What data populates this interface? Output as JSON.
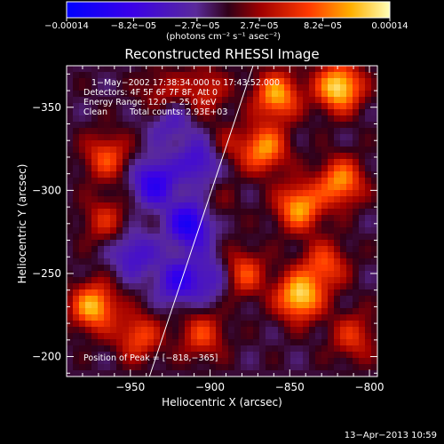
{
  "chart_data": {
    "type": "heatmap",
    "title": "Reconstructed RHESSI Image",
    "xlabel": "Heliocentric X (arcsec)",
    "ylabel": "Heliocentric Y (arcsec)",
    "xlim": [
      -990,
      -795
    ],
    "ylim": [
      -375,
      -188
    ],
    "x_ticks": [
      {
        "value": -950,
        "label": "−950"
      },
      {
        "value": -900,
        "label": "−900"
      },
      {
        "value": -850,
        "label": "−850"
      },
      {
        "value": -800,
        "label": "−800"
      }
    ],
    "y_ticks": [
      {
        "value": -200,
        "label": "−200"
      },
      {
        "value": -250,
        "label": "−250"
      },
      {
        "value": -300,
        "label": "−300"
      },
      {
        "value": -350,
        "label": "−350"
      }
    ],
    "colorbar": {
      "range": [
        -0.00014,
        0.00014
      ],
      "tick_values": [
        -0.00014,
        -8.2e-05,
        -2.7e-05,
        2.7e-05,
        8.2e-05,
        0.00014
      ],
      "tick_labels": [
        "−0.00014",
        "−8.2e−05",
        "−2.7e−05",
        "2.7e−05",
        "8.2e−05",
        "0.00014"
      ],
      "unit_label": "(photons cm⁻² s⁻¹ asec⁻²)"
    },
    "annotations": {
      "time": "1−May−2002 17:38:34.000 to 17:43:52.000",
      "detectors": "Detectors: 4F 5F 6F 7F 8F, Att 0",
      "energy": "Energy Range: 12.0 − 25.0 keV",
      "clean": "Clean",
      "counts": "Total counts: 2.93E+03",
      "peak": "Position of Peak = [−818,−365]"
    },
    "peak_position": [
      -818,
      -365
    ],
    "limb_line": [
      [
        -938,
        -188
      ],
      [
        -873,
        -375
      ]
    ],
    "emission_sources": [
      {
        "x": -819,
        "y": -362,
        "level": 1.0
      },
      {
        "x": -844,
        "y": -236,
        "level": 0.95
      },
      {
        "x": -844,
        "y": -290,
        "level": 0.8
      },
      {
        "x": -866,
        "y": -325,
        "level": 0.75
      },
      {
        "x": -858,
        "y": -357,
        "level": 0.8
      },
      {
        "x": -818,
        "y": -305,
        "level": 0.75
      },
      {
        "x": -880,
        "y": -250,
        "level": 0.6
      },
      {
        "x": -973,
        "y": -230,
        "level": 0.85
      },
      {
        "x": -945,
        "y": -212,
        "level": 0.55
      },
      {
        "x": -905,
        "y": -213,
        "level": 0.5
      },
      {
        "x": -965,
        "y": -320,
        "level": 0.55
      },
      {
        "x": -966,
        "y": -282,
        "level": 0.4
      },
      {
        "x": -930,
        "y": -358,
        "level": 0.35
      },
      {
        "x": -903,
        "y": -360,
        "level": 0.4
      },
      {
        "x": -810,
        "y": -212,
        "level": 0.45
      },
      {
        "x": -898,
        "y": -290,
        "level": 0.2
      },
      {
        "x": -828,
        "y": -255,
        "level": 0.55
      },
      {
        "x": -892,
        "y": -325,
        "level": 0.3
      }
    ],
    "absorption_regions": [
      {
        "x": -920,
        "y": -245,
        "level": -0.55
      },
      {
        "x": -912,
        "y": -280,
        "level": -0.8
      },
      {
        "x": -935,
        "y": -305,
        "level": -0.65
      },
      {
        "x": -905,
        "y": -318,
        "level": -0.55
      },
      {
        "x": -948,
        "y": -262,
        "level": -0.45
      },
      {
        "x": -925,
        "y": -342,
        "level": -0.35
      },
      {
        "x": -897,
        "y": -248,
        "level": -0.4
      }
    ]
  },
  "footer": {
    "date": "13−Apr−2013 10:59"
  }
}
